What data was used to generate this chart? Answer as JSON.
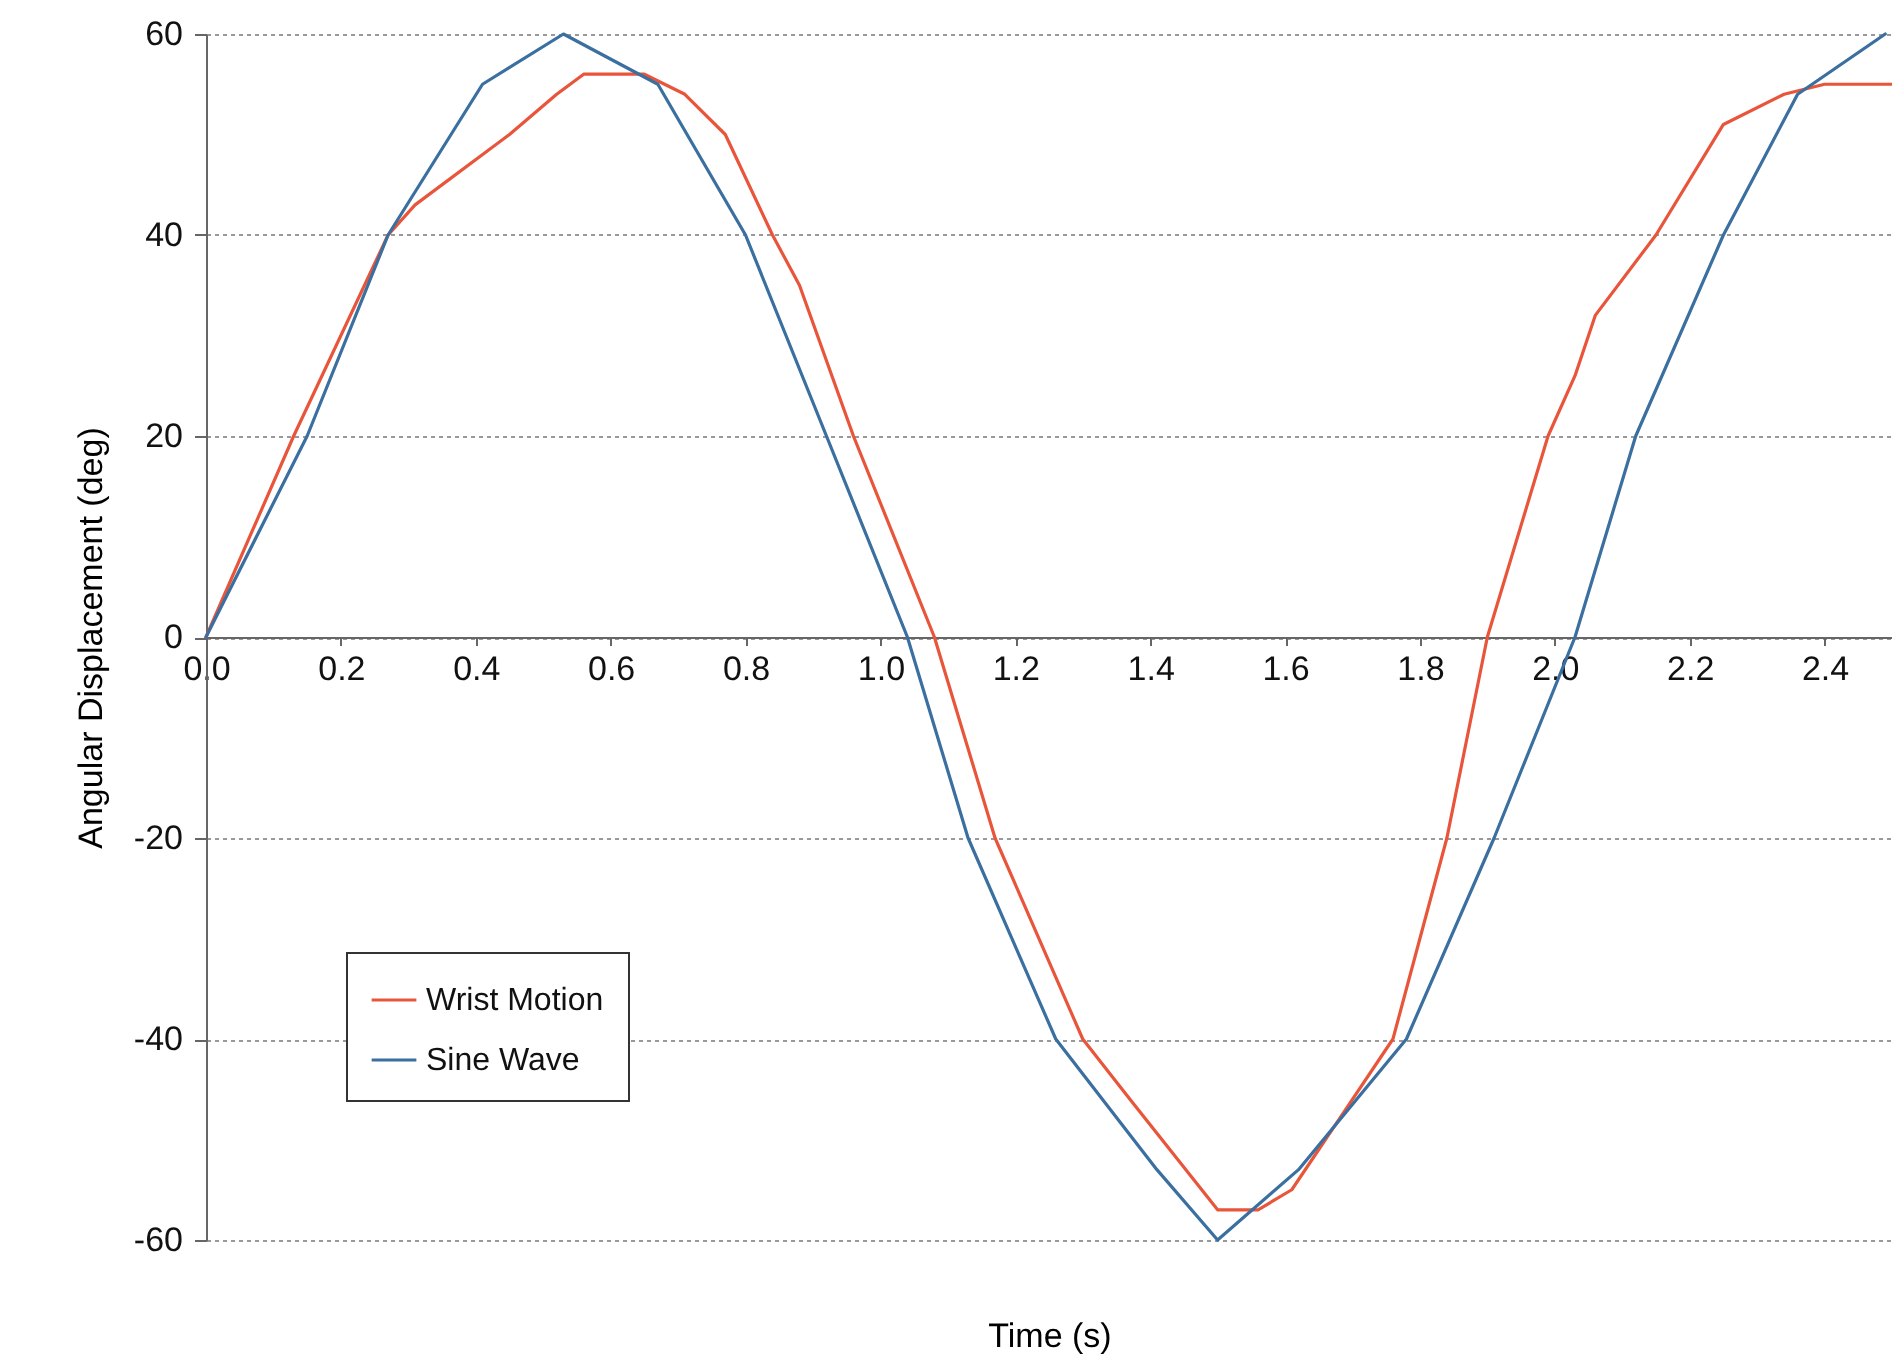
{
  "chart_data": {
    "type": "line",
    "xlabel": "Time (s)",
    "ylabel": "Angular Displacement (deg)",
    "xlim": [
      0,
      2.5
    ],
    "ylim": [
      -60,
      60
    ],
    "xticks": [
      {
        "value": 0,
        "label": "0.0"
      },
      0.2,
      0.4,
      0.6,
      0.8,
      {
        "value": 1,
        "label": "1.0"
      },
      1.2,
      1.4,
      1.6,
      1.8,
      {
        "value": 2,
        "label": "2.0"
      },
      2.2,
      2.4
    ],
    "yticks": [
      -60,
      -40,
      -20,
      0,
      20,
      40,
      60
    ],
    "grid": "y",
    "legend": "bottom left",
    "marker": "none",
    "line_style": "solid",
    "series": [
      {
        "name": "Wrist Motion",
        "color": "#e8553a",
        "x": [
          0,
          0.13,
          0.27,
          0.31,
          0.45,
          0.52,
          0.56,
          0.65,
          0.71,
          0.77,
          0.84,
          0.88,
          0.96,
          1.08,
          1.17,
          1.3,
          1.37,
          1.5,
          1.56,
          1.61,
          1.69,
          1.76,
          1.84,
          1.9,
          1.99,
          2.03,
          2.06,
          2.15,
          2.25,
          2.34,
          2.4,
          2.5
        ],
        "values": [
          0,
          20,
          40,
          43,
          50,
          54,
          56,
          56,
          54,
          50,
          40,
          35,
          20,
          0,
          -20,
          -40,
          -46,
          -57,
          -57,
          -55,
          -47,
          -40,
          -20,
          0,
          20,
          26,
          32,
          40,
          51,
          54,
          55,
          55
        ]
      },
      {
        "name": "Sine Wave",
        "color": "#3a6fa0",
        "x": [
          0,
          0.15,
          0.27,
          0.41,
          0.53,
          0.67,
          0.8,
          0.92,
          1.04,
          1.13,
          1.26,
          1.41,
          1.5,
          1.62,
          1.78,
          1.91,
          2.03,
          2.12,
          2.25,
          2.36,
          2.49
        ],
        "values": [
          0,
          20,
          40,
          55,
          60,
          55,
          40,
          20,
          0,
          -20,
          -40,
          -53,
          -60,
          -53,
          -40,
          -20,
          0,
          20,
          40,
          54,
          60
        ]
      }
    ]
  }
}
